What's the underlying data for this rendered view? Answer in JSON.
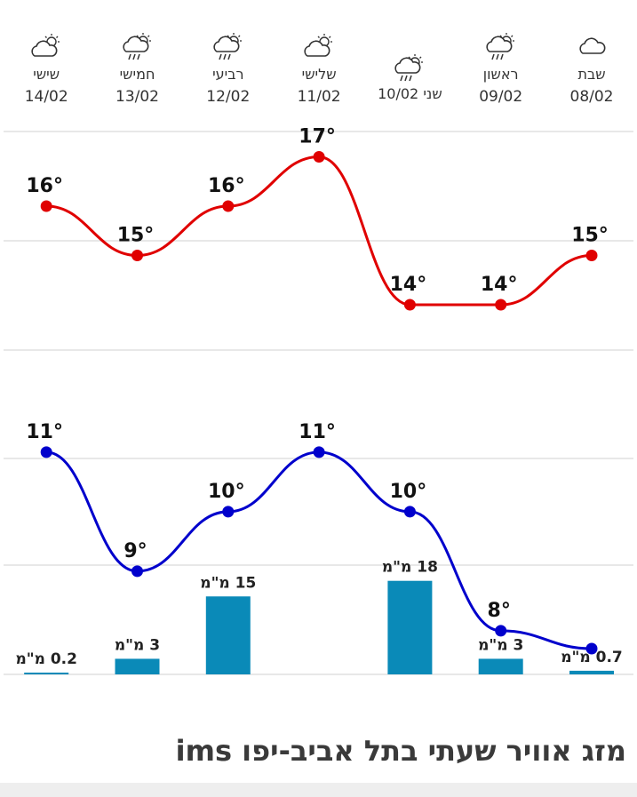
{
  "forecast_days": [
    {
      "name": "שבת",
      "date": "08/02",
      "icon": "cloudy-icon"
    },
    {
      "name": "ראשון",
      "date": "09/02",
      "icon": "partly-cloudy-rain-icon"
    },
    {
      "name": "שני",
      "date": "10/02",
      "icon": "partly-cloudy-rain-icon"
    },
    {
      "name": "שלישי",
      "date": "11/02",
      "icon": "partly-cloudy-icon"
    },
    {
      "name": "רביעי",
      "date": "12/02",
      "icon": "partly-cloudy-rain-icon"
    },
    {
      "name": "חמישי",
      "date": "13/02",
      "icon": "partly-cloudy-rain-icon"
    },
    {
      "name": "שישי",
      "date": "14/02",
      "icon": "partly-cloudy-icon"
    }
  ],
  "footer": {
    "title": "מזג אוויר שעתי בתל אביב-יפו ims"
  },
  "colors": {
    "max_temp": "#e00000",
    "min_temp": "#0000cc",
    "rain": "#0a8ab8",
    "grid": "#e0e0e0"
  },
  "chart_data": {
    "type": "line",
    "categories": [
      "08/02",
      "09/02",
      "10/02",
      "11/02",
      "12/02",
      "13/02",
      "14/02"
    ],
    "x_direction": "right-to-left",
    "series": [
      {
        "values": [
          15,
          14,
          14,
          17,
          16,
          15,
          16
        ],
        "labels": [
          "15°",
          "14°",
          "14°",
          "17°",
          "16°",
          "15°",
          "16°"
        ]
      },
      {
        "values": [
          7.7,
          8,
          10,
          11,
          10,
          9,
          11
        ],
        "labels": [
          "",
          "8°",
          "10°",
          "11°",
          "10°",
          "9°",
          "11°"
        ]
      },
      {
        "type": "bar",
        "values": [
          0.7,
          3,
          18,
          0,
          15,
          3,
          0.2
        ],
        "labels": [
          "0.7 מ\"מ",
          "3 מ\"מ",
          "18 מ\"מ",
          "",
          "15 מ\"מ",
          "3 מ\"מ",
          "0.2 מ\"מ"
        ]
      }
    ],
    "grid": true
  }
}
